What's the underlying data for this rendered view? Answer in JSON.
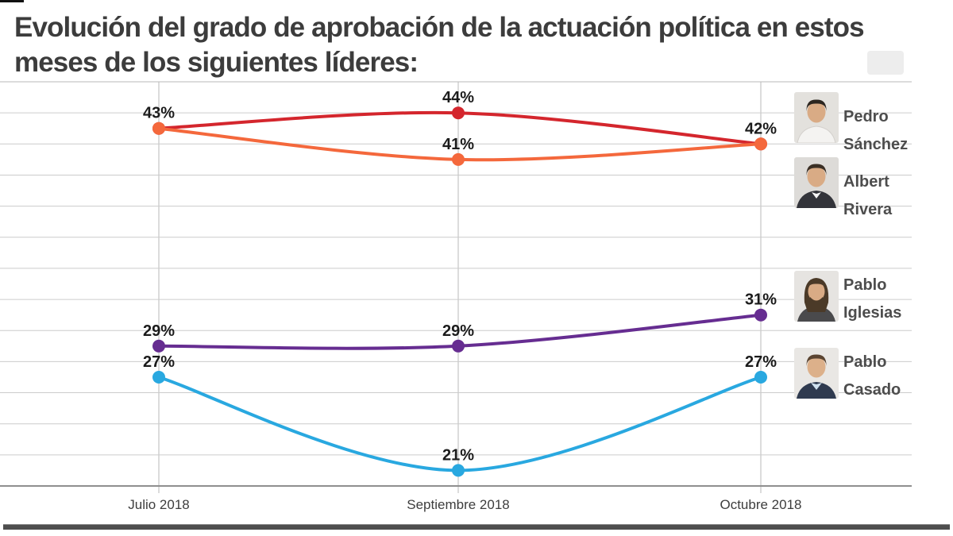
{
  "title": {
    "line1": "Evolución del grado de aprobación de la actuación política en estos",
    "line2": "meses de los siguientes líderes:"
  },
  "chart_data": {
    "type": "line",
    "categories": [
      "Julio 2018",
      "Septiembre 2018",
      "Octubre 2018"
    ],
    "series": [
      {
        "name": "Pedro Sánchez",
        "color": "#d4262d",
        "values": [
          43,
          44,
          42
        ],
        "show_labels": [
          false,
          true,
          false
        ]
      },
      {
        "name": "Albert Rivera",
        "color": "#f4683c",
        "values": [
          43,
          41,
          42
        ],
        "show_labels": [
          true,
          true,
          true
        ]
      },
      {
        "name": "Pablo Iglesias",
        "color": "#662d91",
        "values": [
          29,
          29,
          31
        ],
        "show_labels": [
          true,
          true,
          true
        ]
      },
      {
        "name": "Pablo Casado",
        "color": "#29a8e0",
        "values": [
          27,
          21,
          27
        ],
        "show_labels": [
          true,
          true,
          true
        ]
      }
    ],
    "label_suffix": "%",
    "ylim": [
      20,
      46
    ],
    "grid_step": 2,
    "grid_on": true,
    "y_axis_labels_visible": false,
    "legend_position": "right",
    "colors": {
      "grid": "#cccccc",
      "vertical_grid": "#c4c4c4",
      "top_border": "#b9b9b9",
      "axis": "#8f8f8f",
      "data_label": "#1b1b1b",
      "axis_text": "#3d3d3d"
    }
  },
  "legend": {
    "entries": [
      {
        "first": "Pedro",
        "last": "Sánchez",
        "photo": "pedro-sanchez-photo"
      },
      {
        "first": "Albert",
        "last": "Rivera",
        "photo": "albert-rivera-photo"
      },
      {
        "first": "Pablo",
        "last": "Iglesias",
        "photo": "pablo-iglesias-photo"
      },
      {
        "first": "Pablo",
        "last": "Casado",
        "photo": "pablo-casado-photo"
      }
    ]
  }
}
